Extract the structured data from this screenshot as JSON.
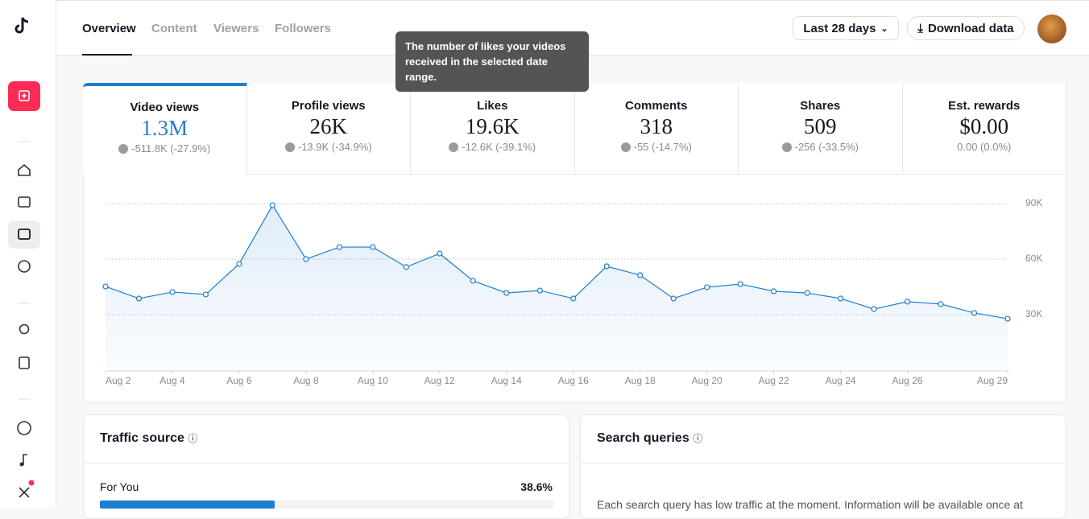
{
  "nav": {
    "tabs": [
      "Overview",
      "Content",
      "Viewers",
      "Followers"
    ],
    "date_range": "Last 28 days",
    "download": "Download data"
  },
  "tooltip": "The number of likes your videos received in the selected date range.",
  "metrics": [
    {
      "label": "Video views",
      "value": "1.3M",
      "change": "-511.8K (-27.9%)"
    },
    {
      "label": "Profile views",
      "value": "26K",
      "change": "-13.9K (-34.9%)"
    },
    {
      "label": "Likes",
      "value": "19.6K",
      "change": "-12.6K (-39.1%)"
    },
    {
      "label": "Comments",
      "value": "318",
      "change": "-55 (-14.7%)"
    },
    {
      "label": "Shares",
      "value": "509",
      "change": "-256 (-33.5%)"
    },
    {
      "label": "Est. rewards",
      "value": "$0.00",
      "change": "0.00 (0.0%)"
    }
  ],
  "chart_data": {
    "type": "line",
    "color": "#1f7ed0",
    "categories": [
      "Aug 2",
      null,
      "Aug 4",
      null,
      "Aug 6",
      null,
      "Aug 8",
      null,
      "Aug 10",
      null,
      "Aug 12",
      null,
      "Aug 14",
      null,
      "Aug 16",
      null,
      "Aug 18",
      null,
      "Aug 20",
      null,
      "Aug 22",
      null,
      "Aug 24",
      null,
      "Aug 26",
      null,
      null,
      "Aug 29"
    ],
    "values": [
      45200,
      38700,
      42200,
      40900,
      57400,
      89100,
      60000,
      66500,
      66500,
      55700,
      63000,
      48300,
      41700,
      43000,
      38700,
      56100,
      51300,
      38700,
      44800,
      46500,
      42600,
      41700,
      38700,
      33000,
      37000,
      35700,
      30900,
      27800
    ],
    "ylim": [
      0,
      90000
    ],
    "yticks": [
      {
        "value": 30000,
        "label": "30K"
      },
      {
        "value": 60000,
        "label": "60K"
      },
      {
        "value": 90000,
        "label": "90K"
      }
    ],
    "grid": true
  },
  "traffic_source": {
    "title": "Traffic source",
    "rows": [
      {
        "label": "For You",
        "value": 38.6,
        "value_label": "38.6%"
      }
    ]
  },
  "search_queries": {
    "title": "Search queries",
    "text": "Each search query has low traffic at the moment. Information will be available once at"
  }
}
